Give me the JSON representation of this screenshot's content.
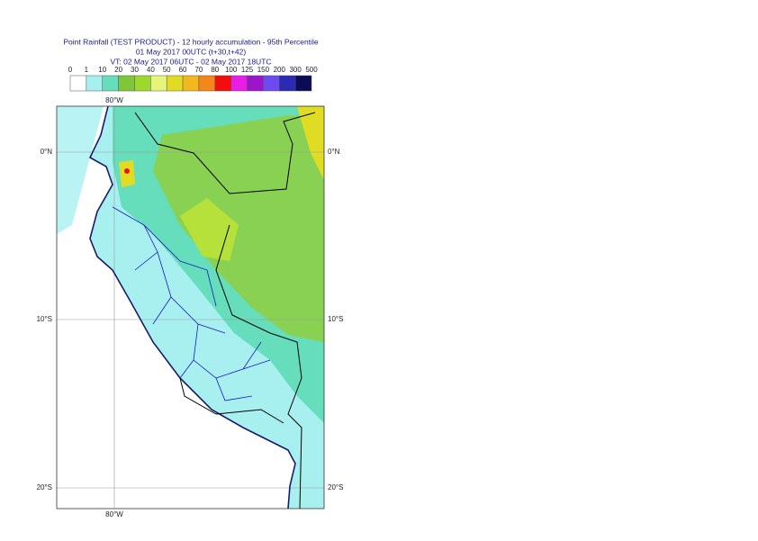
{
  "header": {
    "lines": [
      "Point Rainfall (TEST PRODUCT) - 12 hourly accumulation - 95th Percentile",
      "01 May 2017 00UTC (t+30,t+42)",
      "VT: 02 May 2017 06UTC - 02 May 2017 18UTC"
    ]
  },
  "legend": {
    "bounds": [
      0,
      1,
      10,
      20,
      30,
      40,
      50,
      60,
      70,
      80,
      100,
      125,
      150,
      200,
      300,
      500
    ],
    "colors": [
      "#ffffff",
      "#a8f0f0",
      "#66ddbb",
      "#7fc63a",
      "#9ed82e",
      "#e6f57a",
      "#e0dc24",
      "#f2b81e",
      "#f5861a",
      "#f50d0d",
      "#e81ee8",
      "#9a16c8",
      "#6c4cf0",
      "#2a2ab4",
      "#0b0b56"
    ]
  },
  "map": {
    "lon_labels": [
      "80°W"
    ],
    "lat_labels": [
      "0°N",
      "10°S",
      "20°S"
    ]
  }
}
